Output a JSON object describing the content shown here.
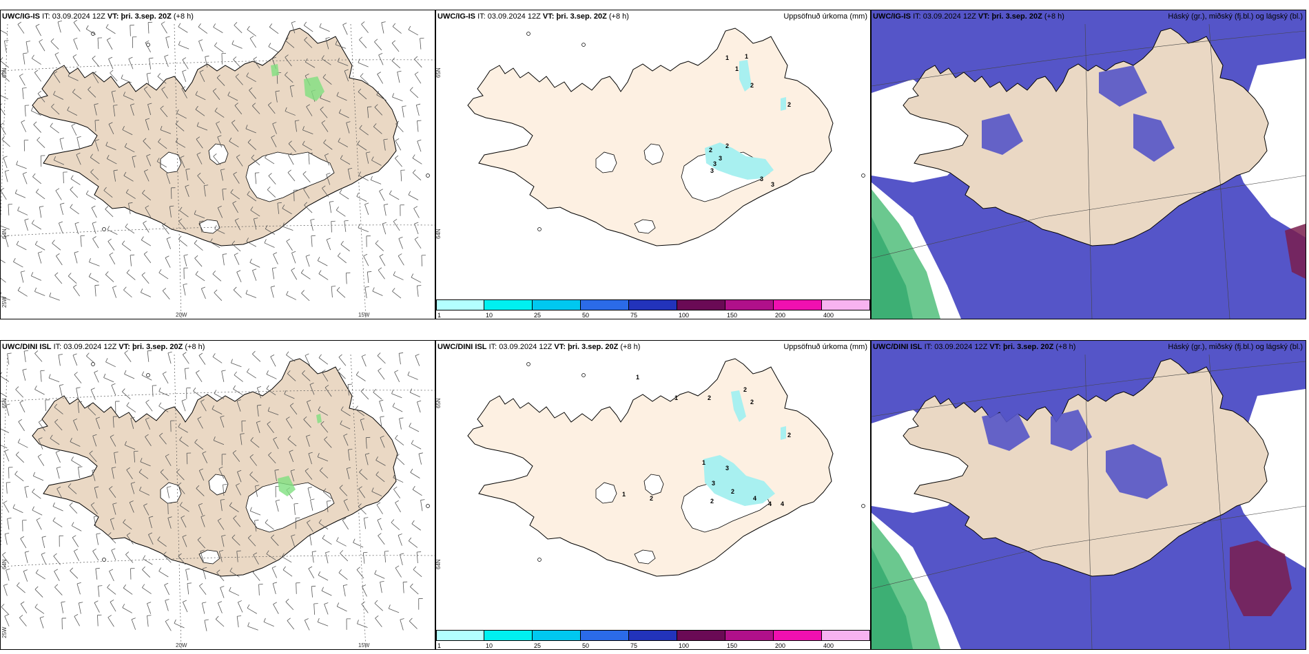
{
  "panels": [
    {
      "id": "p1",
      "kind": "wind",
      "model": "UWC/IG-IS",
      "it_label": "IT:",
      "it_value": "03.09.2024 12Z",
      "vt_label": "VT:",
      "vt_value": "þri. 3.sep. 20Z",
      "lead": "(+8 h)",
      "right_title": "",
      "lon_labels": [
        "20W",
        "15W"
      ],
      "lat_labels": [
        "65N",
        "64N",
        "25W"
      ]
    },
    {
      "id": "p2",
      "kind": "precip",
      "model": "UWC/IG-IS",
      "it_label": "IT:",
      "it_value": "03.09.2024 12Z",
      "vt_label": "VT:",
      "vt_value": "þri. 3.sep. 20Z",
      "lead": "(+8 h)",
      "right_title": "Uppsöfnuð úrkoma (mm)",
      "lat_labels": [
        "65N",
        "64N"
      ],
      "precip_labels": [
        "1",
        "1",
        "1",
        "2",
        "2",
        "2",
        "2",
        "3",
        "3",
        "3",
        "3",
        "3"
      ]
    },
    {
      "id": "p3",
      "kind": "cloud",
      "model": "UWC/IG-IS",
      "it_label": "IT:",
      "it_value": "03.09.2024 12Z",
      "vt_label": "VT:",
      "vt_value": "þri. 3.sep. 20Z",
      "lead": "(+8 h)",
      "right_title": "Háský (gr.), miðský (fj.bl.) og lágský (bl.)"
    },
    {
      "id": "p4",
      "kind": "wind",
      "model": "UWC/DINI ISL",
      "it_label": "IT:",
      "it_value": "03.09.2024 12Z",
      "vt_label": "VT:",
      "vt_value": "þri. 3.sep. 20Z",
      "lead": "(+8 h)",
      "right_title": "",
      "lon_labels": [
        "20W",
        "15W"
      ],
      "lat_labels": [
        "65N",
        "64N",
        "25W"
      ]
    },
    {
      "id": "p5",
      "kind": "precip",
      "model": "UWC/DINI ISL",
      "it_label": "IT:",
      "it_value": "03.09.2024 12Z",
      "vt_label": "VT:",
      "vt_value": "þri. 3.sep. 20Z",
      "lead": "(+8 h)",
      "right_title": "Uppsöfnuð úrkoma (mm)",
      "lat_labels": [
        "65N",
        "64N"
      ],
      "precip_labels": [
        "1",
        "1",
        "2",
        "2",
        "2",
        "2",
        "1",
        "3",
        "3",
        "2",
        "2",
        "4",
        "4",
        "4",
        "1",
        "2"
      ]
    },
    {
      "id": "p6",
      "kind": "cloud",
      "model": "UWC/DINI ISL",
      "it_label": "IT:",
      "it_value": "03.09.2024 12Z",
      "vt_label": "VT:",
      "vt_value": "þri. 3.sep. 20Z",
      "lead": "(+8 h)",
      "right_title": "Háský (gr.), miðský (fj.bl.) og lágský (bl.)"
    }
  ],
  "colorbar": {
    "labels": [
      "1",
      "10",
      "25",
      "50",
      "75",
      "100",
      "150",
      "200",
      "400"
    ],
    "colors": [
      "#b3ffff",
      "#00f0f0",
      "#00c8f0",
      "#2b6be8",
      "#2233bb",
      "#6a0a55",
      "#b0108a",
      "#f010b0",
      "#f7b3f0"
    ]
  },
  "colors": {
    "land": "#ead8c4",
    "land_precip": "#fdf0e2",
    "sea": "#ffffff",
    "mid_cloud": "#5555c8",
    "low_cloud": "#2f74e8",
    "high_cloud": "#3ab56a",
    "precip": "#a8f0f0"
  }
}
